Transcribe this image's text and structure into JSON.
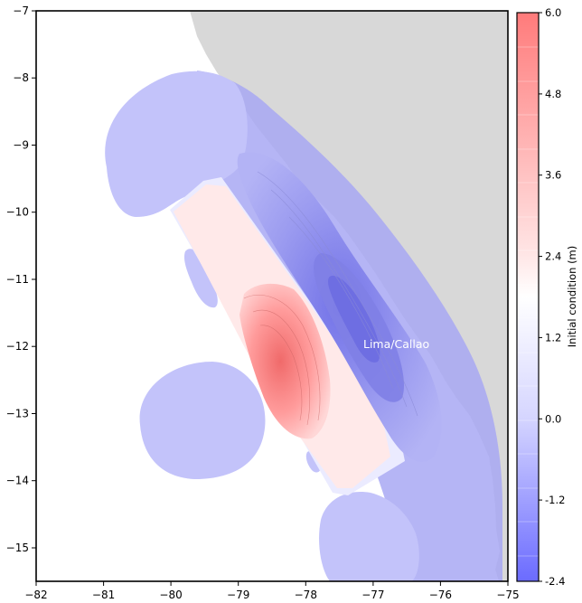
{
  "chart_data": {
    "type": "heatmap",
    "title": "",
    "xlabel": "",
    "ylabel": "",
    "xlim": [
      -82,
      -75
    ],
    "ylim": [
      -15.5,
      -7
    ],
    "x_ticks": [
      "−82",
      "−81",
      "−80",
      "−79",
      "−78",
      "−77",
      "−76",
      "−75"
    ],
    "y_ticks": [
      "−7",
      "−8",
      "−9",
      "−10",
      "−11",
      "−12",
      "−13",
      "−14",
      "−15"
    ],
    "annotation": {
      "text": "Lima/Callao",
      "lon": -77.15,
      "lat": -11.95
    },
    "colorbar": {
      "label": "Initial condition (m)",
      "range": [
        -2.4,
        6.0
      ],
      "ticks": [
        "6.0",
        "4.8",
        "3.6",
        "2.4",
        "1.2",
        "0.0",
        "-1.2",
        "-2.4"
      ],
      "cmap": "bwr",
      "colors": {
        "low": "#6b6bff",
        "mid": "#ffffff",
        "high": "#ff7b7b"
      }
    },
    "land_color": "#d8d8d8"
  }
}
